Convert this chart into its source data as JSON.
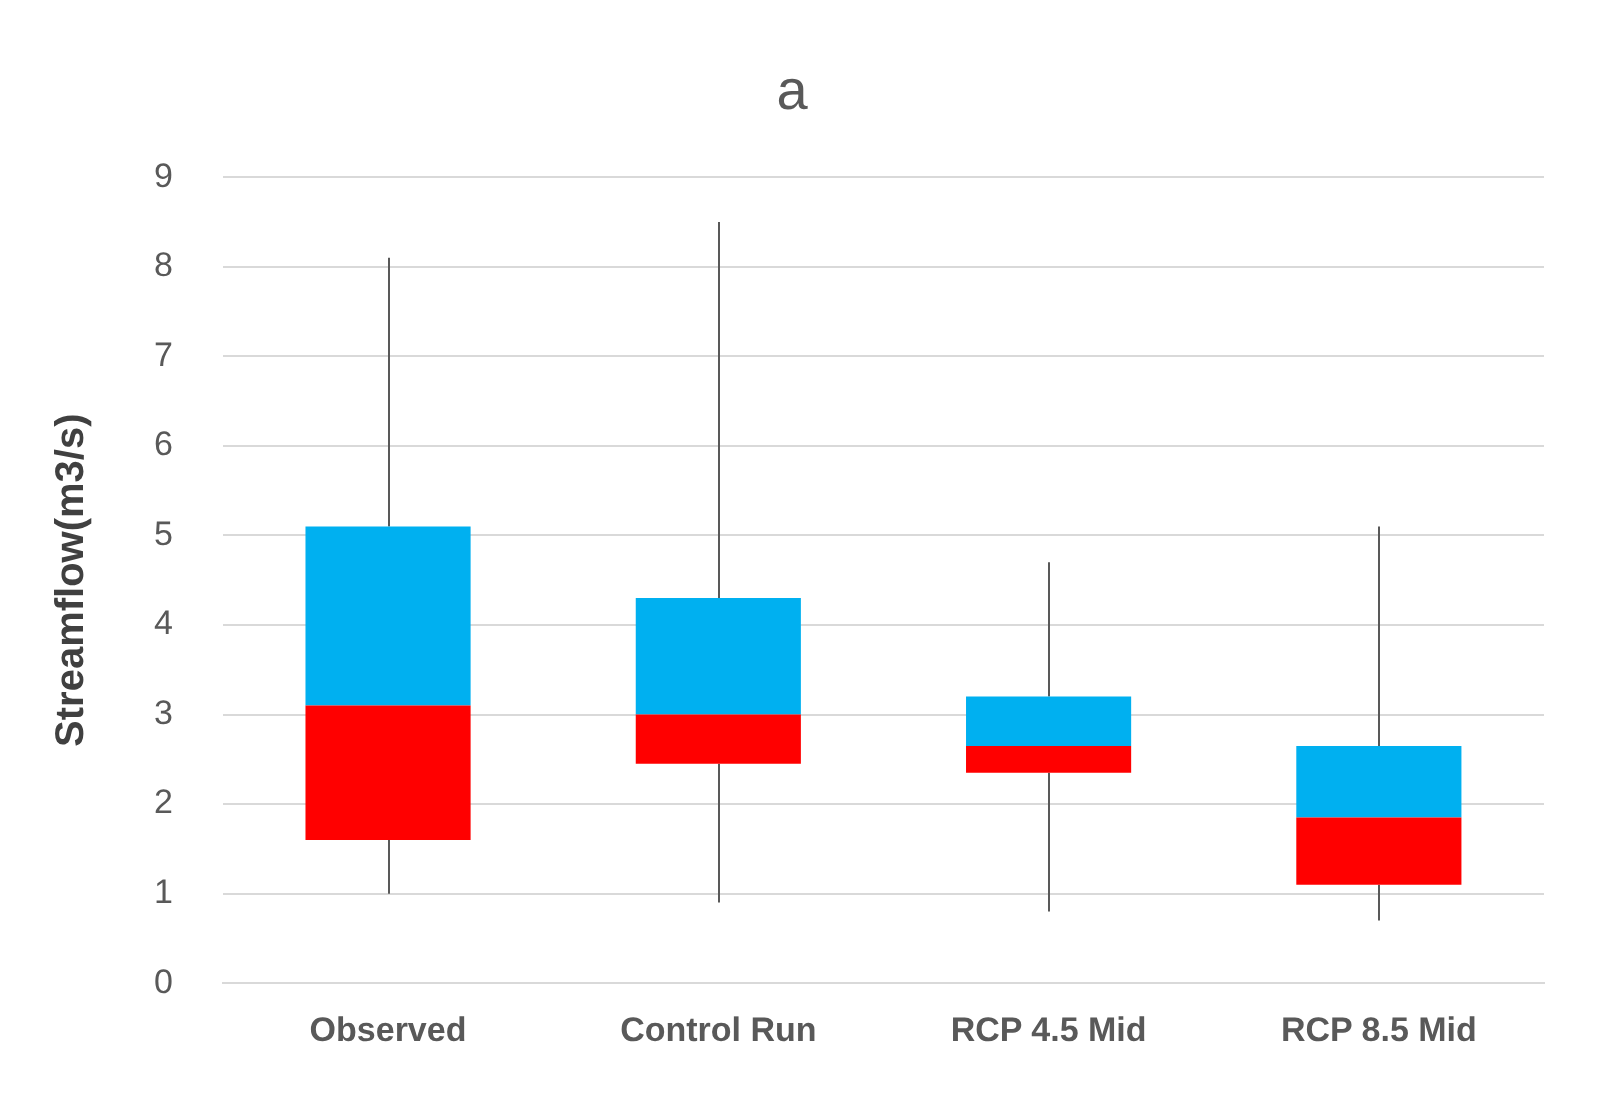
{
  "chart_data": {
    "type": "box",
    "title": "a",
    "ylabel": "Streamflow(m3/s)",
    "categories": [
      "Observed",
      "Control Run",
      "RCP 4.5 Mid",
      "RCP 8.5 Mid"
    ],
    "series": [
      {
        "color": "#00b0f0",
        "colors": [
          "#ff0000",
          "#ff0000",
          "#ff0000",
          "#ff0000"
        ],
        "boxes": [
          {
            "low": 1.0,
            "q1": 1.6,
            "median": 3.1,
            "q3": 5.1,
            "high": 8.1
          },
          {
            "low": 0.9,
            "q1": 2.45,
            "median": 3.0,
            "q3": 4.3,
            "high": 8.5
          },
          {
            "low": 0.8,
            "q1": 2.35,
            "median": 2.65,
            "q3": 3.2,
            "high": 4.7
          },
          {
            "low": 0.7,
            "q1": 1.1,
            "median": 1.85,
            "q3": 2.65,
            "high": 5.1
          }
        ]
      }
    ],
    "ylim": [
      0,
      9
    ],
    "yticks": [
      0,
      1,
      2,
      3,
      4,
      5,
      6,
      7,
      8,
      9
    ],
    "grid": "y"
  }
}
